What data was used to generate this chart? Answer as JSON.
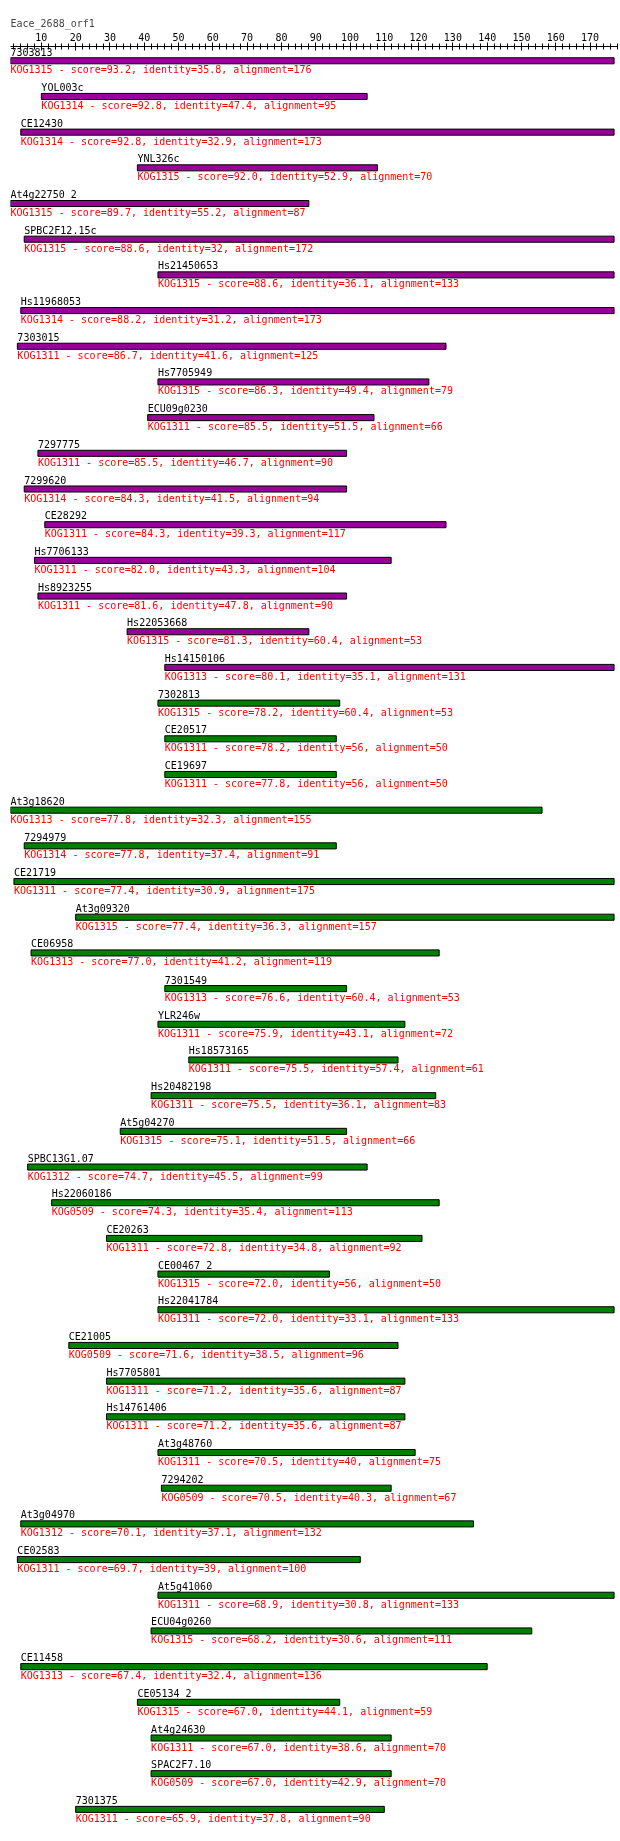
{
  "chart_data": {
    "type": "bar",
    "orientation": "horizontal",
    "title": "Eace_2688_orf1",
    "xlim": [
      1,
      178
    ],
    "xticks": [
      10,
      20,
      30,
      40,
      50,
      60,
      70,
      80,
      90,
      100,
      110,
      120,
      130,
      140,
      150,
      160,
      170
    ],
    "grid": false,
    "categories": [
      "7303813",
      "YOL003c",
      "CE12430",
      "YNL326c",
      "At4g22750_2",
      "SPBC2F12.15c",
      "Hs21450653",
      "Hs11968053",
      "7303015",
      "Hs7705949",
      "ECU09g0230",
      "7297775",
      "7299620",
      "CE28292",
      "Hs7706133",
      "Hs8923255",
      "Hs22053668",
      "Hs14150106",
      "7302813",
      "CE20517",
      "CE19697",
      "At3g18620",
      "7294979",
      "CE21719",
      "At3g09320",
      "CE06958",
      "7301549",
      "YLR246w",
      "Hs18573165",
      "Hs20482198",
      "At5g04270",
      "SPBC13G1.07",
      "Hs22060186",
      "CE20263",
      "CE00467_2",
      "Hs22041784",
      "CE21005",
      "Hs7705801",
      "Hs14761406",
      "At3g48760",
      "7294202",
      "At3g04970",
      "CE02583",
      "At5g41060",
      "ECU04g0260",
      "CE11458",
      "CE05134_2",
      "At4g24630",
      "SPAC2F7.10",
      "7301375"
    ],
    "base": [
      1,
      10,
      4,
      38,
      1,
      5,
      44,
      4,
      3,
      44,
      41,
      9,
      5,
      11,
      8,
      9,
      35,
      46,
      44,
      46,
      46,
      1,
      5,
      2,
      20,
      7,
      46,
      44,
      53,
      42,
      33,
      6,
      13,
      29,
      44,
      44,
      18,
      29,
      29,
      44,
      45,
      4,
      3,
      44,
      42,
      4,
      38,
      42,
      42,
      20
    ],
    "values": [
      176,
      95,
      173,
      70,
      87,
      172,
      133,
      173,
      125,
      79,
      66,
      90,
      94,
      117,
      104,
      90,
      53,
      131,
      53,
      50,
      50,
      155,
      91,
      175,
      157,
      119,
      53,
      72,
      61,
      83,
      66,
      99,
      113,
      92,
      50,
      133,
      96,
      87,
      87,
      75,
      67,
      132,
      100,
      133,
      111,
      136,
      59,
      70,
      70,
      90
    ],
    "colors": [
      "#990099",
      "#990099",
      "#990099",
      "#990099",
      "#990099",
      "#990099",
      "#990099",
      "#990099",
      "#990099",
      "#990099",
      "#990099",
      "#990099",
      "#990099",
      "#990099",
      "#990099",
      "#990099",
      "#990099",
      "#990099",
      "#008000",
      "#008000",
      "#008000",
      "#008000",
      "#008000",
      "#008000",
      "#008000",
      "#008000",
      "#008000",
      "#008000",
      "#008000",
      "#008000",
      "#008000",
      "#008000",
      "#008000",
      "#008000",
      "#008000",
      "#008000",
      "#008000",
      "#008000",
      "#008000",
      "#008000",
      "#008000",
      "#008000",
      "#008000",
      "#008000",
      "#008000",
      "#008000",
      "#008000",
      "#008000",
      "#008000",
      "#008000"
    ],
    "value_labels": [
      "KOG1315 - score=93.2, identity=35.8, alignment=176",
      "KOG1314 - score=92.8, identity=47.4, alignment=95",
      "KOG1314 - score=92.8, identity=32.9, alignment=173",
      "KOG1315 - score=92.0, identity=52.9, alignment=70",
      "KOG1315 - score=89.7, identity=55.2, alignment=87",
      "KOG1315 - score=88.6, identity=32, alignment=172",
      "KOG1315 - score=88.6, identity=36.1, alignment=133",
      "KOG1314 - score=88.2, identity=31.2, alignment=173",
      "KOG1311 - score=86.7, identity=41.6, alignment=125",
      "KOG1315 - score=86.3, identity=49.4, alignment=79",
      "KOG1311 - score=85.5, identity=51.5, alignment=66",
      "KOG1311 - score=85.5, identity=46.7, alignment=90",
      "KOG1314 - score=84.3, identity=41.5, alignment=94",
      "KOG1311 - score=84.3, identity=39.3, alignment=117",
      "KOG1311 - score=82.0, identity=43.3, alignment=104",
      "KOG1311 - score=81.6, identity=47.8, alignment=90",
      "KOG1315 - score=81.3, identity=60.4, alignment=53",
      "KOG1313 - score=80.1, identity=35.1, alignment=131",
      "KOG1315 - score=78.2, identity=60.4, alignment=53",
      "KOG1311 - score=78.2, identity=56, alignment=50",
      "KOG1311 - score=77.8, identity=56, alignment=50",
      "KOG1313 - score=77.8, identity=32.3, alignment=155",
      "KOG1314 - score=77.8, identity=37.4, alignment=91",
      "KOG1311 - score=77.4, identity=30.9, alignment=175",
      "KOG1315 - score=77.4, identity=36.3, alignment=157",
      "KOG1313 - score=77.0, identity=41.2, alignment=119",
      "KOG1313 - score=76.6, identity=60.4, alignment=53",
      "KOG1311 - score=75.9, identity=43.1, alignment=72",
      "KOG1311 - score=75.5, identity=57.4, alignment=61",
      "KOG1311 - score=75.5, identity=36.1, alignment=83",
      "KOG1315 - score=75.1, identity=51.5, alignment=66",
      "KOG1312 - score=74.7, identity=45.5, alignment=99",
      "KOG0509 - score=74.3, identity=35.4, alignment=113",
      "KOG1311 - score=72.8, identity=34.8, alignment=92",
      "KOG1315 - score=72.0, identity=56, alignment=50",
      "KOG1311 - score=72.0, identity=33.1, alignment=133",
      "KOG0509 - score=71.6, identity=38.5, alignment=96",
      "KOG1311 - score=71.2, identity=35.6, alignment=87",
      "KOG1311 - score=71.2, identity=35.6, alignment=87",
      "KOG1311 - score=70.5, identity=40, alignment=75",
      "KOG0509 - score=70.5, identity=40.3, alignment=67",
      "KOG1312 - score=70.1, identity=37.1, alignment=132",
      "KOG1311 - score=69.7, identity=39, alignment=100",
      "KOG1311 - score=68.9, identity=30.8, alignment=133",
      "KOG1315 - score=68.2, identity=30.6, alignment=111",
      "KOG1313 - score=67.4, identity=32.4, alignment=136",
      "KOG1315 - score=67.0, identity=44.1, alignment=59",
      "KOG1311 - score=67.0, identity=38.6, alignment=70",
      "KOG0509 - score=67.0, identity=42.9, alignment=70",
      "KOG1311 - score=65.9, identity=37.8, alignment=90"
    ]
  }
}
